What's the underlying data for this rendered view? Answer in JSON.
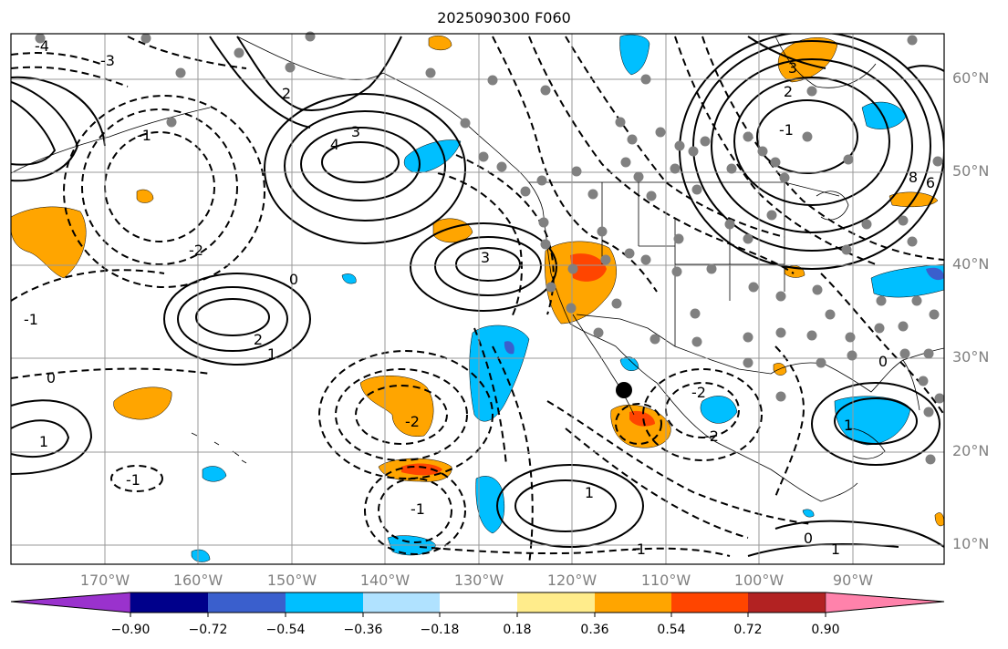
{
  "title": "2025090300 F060",
  "longitude_labels": [
    "170°W",
    "160°W",
    "150°W",
    "140°W",
    "130°W",
    "120°W",
    "110°W",
    "100°W",
    "90°W"
  ],
  "latitude_labels": [
    "60°N",
    "50°N",
    "40°N",
    "30°N",
    "20°N",
    "10°N"
  ],
  "contour_labels": [
    "-4",
    "-3",
    "2",
    "3",
    "4",
    "-2",
    "-1",
    "0",
    "1",
    "-1",
    "2",
    "3",
    "-1",
    "3",
    "-2",
    "1",
    "8",
    "6",
    "-2",
    "0",
    "1",
    "2",
    "-1",
    "-2",
    "1",
    "0",
    "-1",
    "1",
    "0",
    "-1"
  ],
  "colorbar": {
    "ticks": [
      "−0.90",
      "−0.72",
      "−0.54",
      "−0.36",
      "−0.18",
      "0.18",
      "0.36",
      "0.54",
      "0.72",
      "0.90"
    ],
    "colors": [
      "#9a32cd",
      "#00008b",
      "#3a5fcd",
      "#00bfff",
      "#b0e2ff",
      "#ffffff",
      "#ffec8b",
      "#ffa500",
      "#ff4500",
      "#b22222",
      "#ff82ab"
    ]
  }
}
